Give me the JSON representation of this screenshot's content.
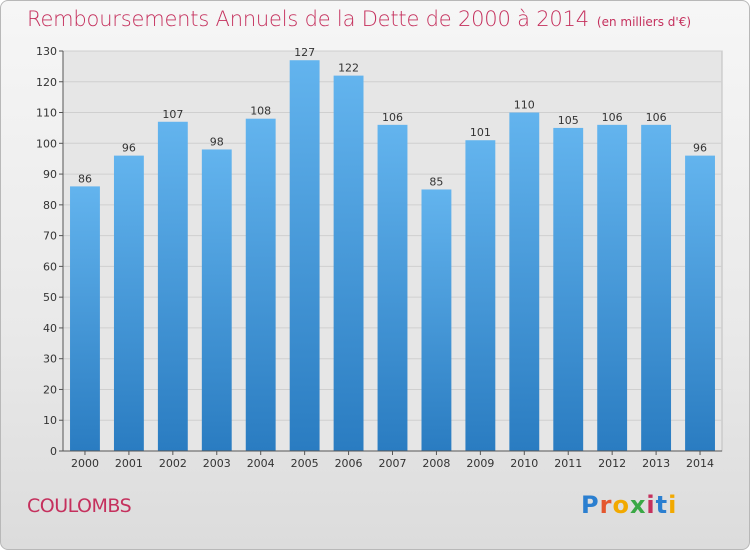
{
  "header": {
    "title": "Remboursements Annuels de la Dette de 2000 à 2014",
    "subtitle": "(en milliers d'€)"
  },
  "footer": {
    "commune": "COULOMBS",
    "logo_text": "Proxiti"
  },
  "colors": {
    "accent": "#c5305d",
    "bar_top": "#63b4ee",
    "bar_bottom": "#2a7cc1"
  },
  "chart_data": {
    "type": "bar",
    "title": "Remboursements Annuels de la Dette de 2000 à 2014",
    "subtitle": "(en milliers d'€)",
    "categories": [
      "2000",
      "2001",
      "2002",
      "2003",
      "2004",
      "2005",
      "2006",
      "2007",
      "2008",
      "2009",
      "2010",
      "2011",
      "2012",
      "2013",
      "2014"
    ],
    "values": [
      86,
      96,
      107,
      98,
      108,
      127,
      122,
      106,
      85,
      101,
      110,
      105,
      106,
      106,
      96
    ],
    "ylim": [
      0,
      130
    ],
    "yticks": [
      0,
      10,
      20,
      30,
      40,
      50,
      60,
      70,
      80,
      90,
      100,
      110,
      120,
      130
    ],
    "grid": true,
    "data_labels": true
  }
}
